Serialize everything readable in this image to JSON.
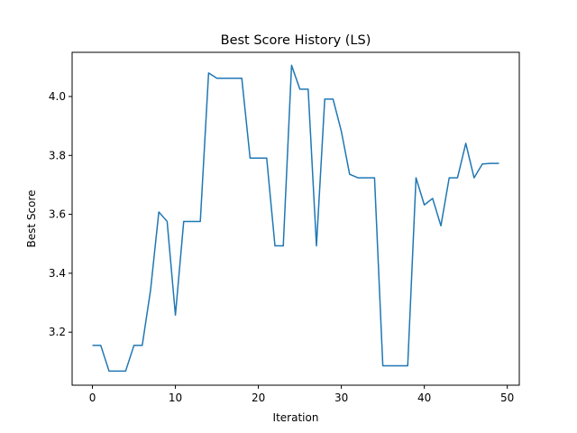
{
  "chart_data": {
    "type": "line",
    "title": "Best Score History (LS)",
    "xlabel": "Iteration",
    "ylabel": "Best Score",
    "xlim": [
      -2.45,
      51.45
    ],
    "ylim": [
      3.02,
      4.15
    ],
    "xticks": [
      0,
      10,
      20,
      30,
      40,
      50
    ],
    "yticks": [
      3.2,
      3.4,
      3.6,
      3.8,
      4.0
    ],
    "grid": false,
    "legend": "none",
    "series": [
      {
        "color": "#1f77b4",
        "x": [
          0,
          1,
          2,
          3,
          4,
          5,
          6,
          7,
          8,
          9,
          10,
          11,
          12,
          13,
          14,
          15,
          16,
          17,
          18,
          19,
          20,
          21,
          22,
          23,
          24,
          25,
          26,
          27,
          28,
          29,
          30,
          31,
          32,
          33,
          34,
          35,
          36,
          37,
          38,
          39,
          40,
          41,
          42,
          43,
          44,
          45,
          46,
          47,
          48,
          49
        ],
        "y": [
          3.155,
          3.155,
          3.068,
          3.068,
          3.068,
          3.155,
          3.155,
          3.342,
          3.608,
          3.576,
          3.258,
          3.576,
          3.576,
          3.576,
          4.08,
          4.062,
          4.062,
          4.062,
          4.062,
          3.791,
          3.791,
          3.791,
          3.493,
          3.493,
          4.106,
          4.025,
          4.025,
          3.493,
          3.991,
          3.991,
          3.882,
          3.736,
          3.724,
          3.724,
          3.724,
          3.086,
          3.086,
          3.086,
          3.086,
          3.724,
          3.632,
          3.654,
          3.561,
          3.724,
          3.724,
          3.841,
          3.724,
          3.771,
          3.773,
          3.773
        ]
      }
    ]
  }
}
